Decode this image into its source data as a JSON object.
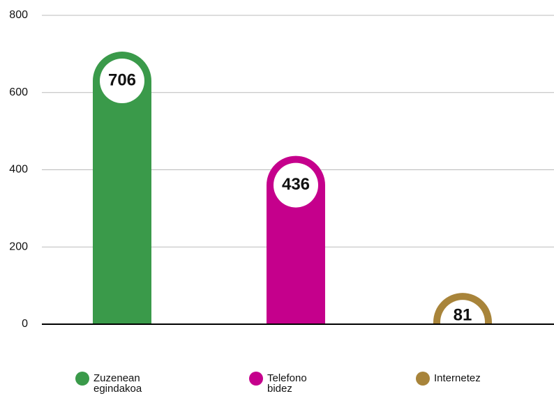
{
  "chart_data": {
    "type": "bar",
    "categories": [
      "Zuzenean egindakoa",
      "Telefono bidez",
      "Internetez"
    ],
    "values": [
      706,
      436,
      81
    ],
    "colors": [
      "#3a9a4a",
      "#c5008c",
      "#a8843a"
    ],
    "ylim": [
      0,
      800
    ],
    "yticks": [
      0,
      200,
      400,
      600,
      800
    ],
    "grid": true
  }
}
